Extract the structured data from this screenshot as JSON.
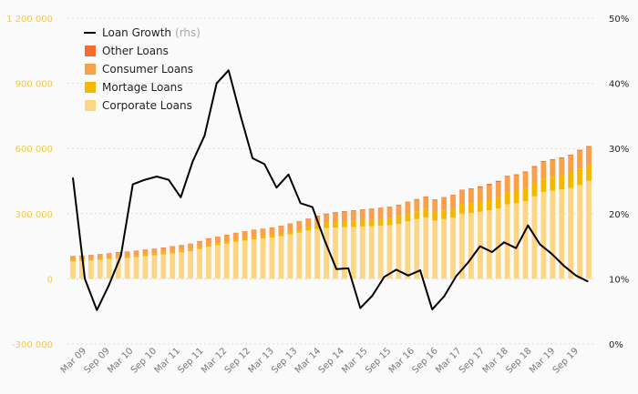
{
  "chart_data": {
    "type": "bar+line",
    "y_left": {
      "ylim": [
        -300000,
        1200000
      ],
      "ticks": [
        "-300 000",
        "0",
        "300 000",
        "600 000",
        "900 000",
        "1 200 000"
      ]
    },
    "y_right": {
      "ylim": [
        0,
        50
      ],
      "ticks": [
        "0%",
        "10%",
        "20%",
        "30%",
        "40%",
        "50%"
      ]
    },
    "x_tick_labels": [
      "Mar 09",
      "Sep 09",
      "Mar 10",
      "Sep 10",
      "Mar 11",
      "Sep 11",
      "Mar 12",
      "Sep 12",
      "Mar 13",
      "Sep 13",
      "Mar 14",
      "Sep 14",
      "Mar 15",
      "Sep 15",
      "Mar 16",
      "Sep 16",
      "Mar 17",
      "Sep 17",
      "Mar 18",
      "Sep 18",
      "Mar 19",
      "Sep 19"
    ],
    "legend": [
      {
        "label": "Loan Growth",
        "hint": "(rhs)",
        "kind": "line",
        "color": "#000000"
      },
      {
        "label": "Other Loans",
        "kind": "bar",
        "color": "#f26b2f"
      },
      {
        "label": "Consumer Loans",
        "kind": "bar",
        "color": "#f9a04b"
      },
      {
        "label": "Mortage Loans",
        "kind": "bar",
        "color": "#f5b800"
      },
      {
        "label": "Corporate Loans",
        "kind": "bar",
        "color": "#fdd683"
      }
    ],
    "series": [
      {
        "name": "Corporate Loans",
        "color": "#fdd683",
        "values": [
          80000,
          82000,
          84000,
          87000,
          90000,
          93000,
          96000,
          100000,
          104000,
          108000,
          112000,
          117000,
          122000,
          127000,
          137000,
          148000,
          155000,
          162000,
          170000,
          176000,
          182000,
          186000,
          190000,
          196000,
          205000,
          213000,
          222000,
          230000,
          234000,
          236000,
          238000,
          239000,
          241000,
          242000,
          244000,
          247000,
          252000,
          265000,
          275000,
          283000,
          268000,
          275000,
          282000,
          300000,
          303000,
          309000,
          315000,
          324000,
          343000,
          348000,
          358000,
          380000,
          400000,
          406000,
          411000,
          418000,
          432000,
          451000
        ]
      },
      {
        "name": "Mortage Loans",
        "color": "#f5b800",
        "values": [
          7000,
          7000,
          7000,
          7000,
          7000,
          8000,
          8000,
          8000,
          8000,
          8000,
          8000,
          8000,
          8000,
          8000,
          9000,
          9000,
          9000,
          10000,
          10000,
          10000,
          10000,
          11000,
          11000,
          11000,
          12000,
          13000,
          15000,
          19000,
          22000,
          25000,
          26000,
          28000,
          29000,
          30000,
          31000,
          32000,
          35000,
          35000,
          36000,
          38000,
          38000,
          40000,
          42000,
          45000,
          46000,
          47000,
          49000,
          52000,
          55000,
          56000,
          58000,
          60000,
          62000,
          64000,
          66000,
          70000,
          76000,
          74000
        ]
      },
      {
        "name": "Consumer Loans",
        "color": "#f9a04b",
        "values": [
          16000,
          16000,
          17000,
          18000,
          19000,
          20000,
          20000,
          20000,
          21000,
          21000,
          22000,
          23000,
          24000,
          25000,
          26000,
          27000,
          28000,
          29000,
          30000,
          31000,
          32000,
          32000,
          33000,
          34000,
          35000,
          36000,
          37000,
          39000,
          41000,
          43000,
          45000,
          46000,
          47000,
          48000,
          49000,
          50000,
          51000,
          52000,
          53000,
          55000,
          56000,
          58000,
          60000,
          62000,
          63000,
          65000,
          67000,
          69000,
          72000,
          73000,
          74000,
          75000,
          76000,
          77000,
          78000,
          79000,
          82000,
          82000
        ]
      },
      {
        "name": "Other Loans",
        "color": "#f26b2f",
        "values": [
          2000,
          2000,
          2000,
          2000,
          2000,
          2000,
          2000,
          2000,
          2000,
          2000,
          2000,
          2000,
          2000,
          2000,
          2000,
          2000,
          2000,
          2000,
          2000,
          2000,
          2000,
          2000,
          2000,
          3000,
          3000,
          3000,
          3000,
          3000,
          3000,
          3000,
          3000,
          3000,
          3000,
          3000,
          3000,
          3000,
          3000,
          3000,
          3000,
          3000,
          3000,
          3000,
          3000,
          3000,
          4000,
          5000,
          6000,
          6000,
          4000,
          4000,
          4000,
          4000,
          4000,
          4000,
          4000,
          4000,
          4000,
          4000
        ]
      },
      {
        "name": "Loan Growth",
        "color": "#000000",
        "axis": "right",
        "values": [
          25.5,
          10,
          5.2,
          9,
          13.5,
          24.5,
          25.2,
          25.7,
          25.2,
          22.5,
          28,
          32,
          40,
          42,
          35,
          28.5,
          27.6,
          24,
          26,
          21.6,
          21,
          16,
          11.5,
          11.6,
          5.5,
          7.4,
          10.3,
          11.4,
          10.5,
          11.3,
          5.3,
          7.3,
          10.4,
          12.5,
          15,
          14.1,
          15.6,
          14.7,
          18.2,
          15.3,
          13.8,
          12,
          10.5,
          9.6
        ]
      }
    ]
  }
}
